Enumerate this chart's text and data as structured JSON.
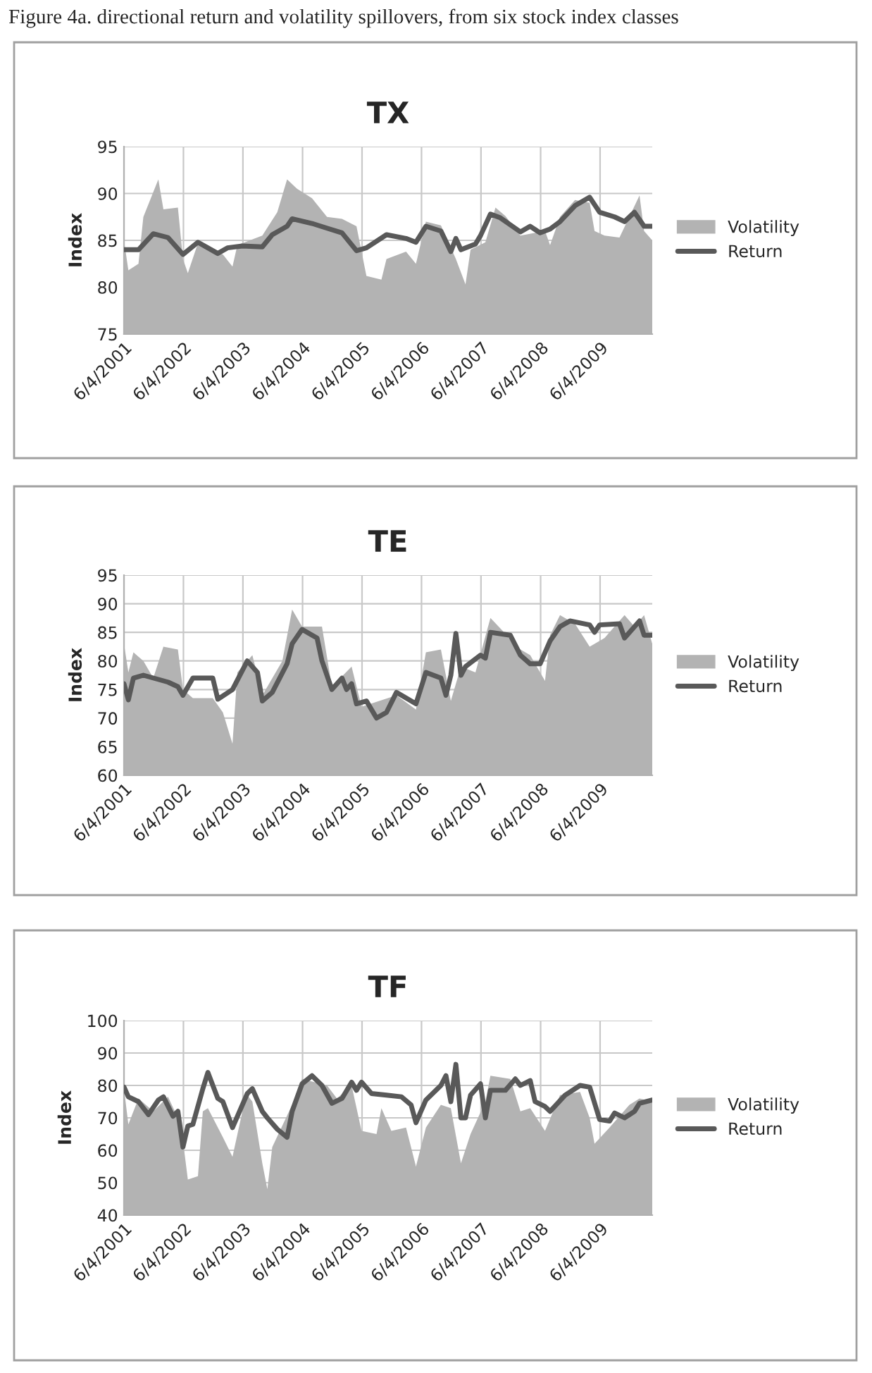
{
  "chart_data": [
    {
      "type": "area",
      "title": "TX",
      "ylabel": "Index",
      "annotations": [
        "Figure 4a. directional return and volatility spillovers, from six stock index classes"
      ],
      "xlim": [
        "2001-06-04",
        "2010-04-20"
      ],
      "xticks": [
        {
          "value": "2001-06-04",
          "label": "6/4/2001"
        },
        {
          "value": "2002-06-04",
          "label": "6/4/2002"
        },
        {
          "value": "2003-06-04",
          "label": "6/4/2003"
        },
        {
          "value": "2004-06-04",
          "label": "6/4/2004"
        },
        {
          "value": "2005-06-04",
          "label": "6/4/2005"
        },
        {
          "value": "2006-06-04",
          "label": "6/4/2006"
        },
        {
          "value": "2007-06-04",
          "label": "6/4/2007"
        },
        {
          "value": "2008-06-04",
          "label": "6/4/2008"
        },
        {
          "value": "2009-06-04",
          "label": "6/4/2009"
        }
      ],
      "ylim": [
        75,
        95
      ],
      "yticks": [
        75,
        80,
        85,
        90,
        95
      ],
      "grid": true,
      "legend": "right",
      "series": [
        {
          "name": "Volatility",
          "color": "#b3b3b3",
          "x": [
            "2001-06-04",
            "2001-07",
            "2001-09",
            "2001-10",
            "2002-01",
            "2002-02",
            "2002-05",
            "2002-06",
            "2002-07",
            "2002-09",
            "2003-02",
            "2003-04",
            "2003-05",
            "2003-10",
            "2004-01",
            "2004-03",
            "2004-05",
            "2004-08",
            "2004-11",
            "2005-02",
            "2005-05",
            "2005-07",
            "2005-10",
            "2005-11",
            "2006-03",
            "2006-05",
            "2006-07",
            "2006-10",
            "2007-01",
            "2007-03",
            "2007-04",
            "2007-07",
            "2007-09",
            "2007-11",
            "2008-02",
            "2008-07",
            "2008-08",
            "2008-10",
            "2009-01",
            "2009-04",
            "2009-05",
            "2009-07",
            "2009-10",
            "2010-02",
            "2010-03",
            "2010-04-20"
          ],
          "values": [
            85.0,
            81.8,
            82.5,
            87.5,
            91.5,
            88.3,
            88.5,
            83.0,
            81.5,
            84.7,
            83.5,
            82.2,
            84.5,
            85.5,
            88.0,
            91.5,
            90.5,
            89.5,
            87.5,
            87.3,
            86.5,
            81.2,
            80.8,
            83.0,
            83.8,
            82.5,
            87.0,
            86.6,
            83.0,
            80.3,
            84.0,
            84.8,
            88.5,
            87.6,
            85.5,
            86.0,
            84.5,
            87.5,
            89.3,
            89.0,
            86.0,
            85.5,
            85.3,
            89.8,
            86.0,
            85.0
          ]
        },
        {
          "name": "Return",
          "type": "line",
          "color": "#595959",
          "x": [
            "2001-06-04",
            "2001-09",
            "2001-12",
            "2002-03",
            "2002-06",
            "2002-09",
            "2003-01",
            "2003-03",
            "2003-06",
            "2003-10",
            "2003-12",
            "2004-03",
            "2004-04",
            "2004-08",
            "2004-11",
            "2005-02",
            "2005-05",
            "2005-07",
            "2005-11",
            "2006-03",
            "2006-05",
            "2006-07",
            "2006-10",
            "2006-12",
            "2007-01",
            "2007-02",
            "2007-05",
            "2007-06",
            "2007-08",
            "2007-10",
            "2008-02",
            "2008-04",
            "2008-06",
            "2008-08",
            "2008-10",
            "2009-01",
            "2009-04",
            "2009-06",
            "2009-09",
            "2009-11",
            "2010-01",
            "2010-03",
            "2010-04-20"
          ],
          "values": [
            84.0,
            84.0,
            85.7,
            85.3,
            83.5,
            84.8,
            83.6,
            84.2,
            84.4,
            84.3,
            85.6,
            86.5,
            87.3,
            86.8,
            86.3,
            85.8,
            83.9,
            84.2,
            85.6,
            85.2,
            84.8,
            86.5,
            86.0,
            83.8,
            85.2,
            84.0,
            84.6,
            85.5,
            87.8,
            87.4,
            85.9,
            86.5,
            85.8,
            86.2,
            87.0,
            88.7,
            89.6,
            88.0,
            87.5,
            87.0,
            88.0,
            86.5,
            86.5
          ]
        }
      ]
    },
    {
      "type": "area",
      "title": "TE",
      "ylabel": "Index",
      "xlim": [
        "2001-06-04",
        "2010-04-20"
      ],
      "xticks": [
        {
          "value": "2001-06-04",
          "label": "6/4/2001"
        },
        {
          "value": "2002-06-04",
          "label": "6/4/2002"
        },
        {
          "value": "2003-06-04",
          "label": "6/4/2003"
        },
        {
          "value": "2004-06-04",
          "label": "6/4/2004"
        },
        {
          "value": "2005-06-04",
          "label": "6/4/2005"
        },
        {
          "value": "2006-06-04",
          "label": "6/4/2006"
        },
        {
          "value": "2007-06-04",
          "label": "6/4/2007"
        },
        {
          "value": "2008-06-04",
          "label": "6/4/2008"
        },
        {
          "value": "2009-06-04",
          "label": "6/4/2009"
        }
      ],
      "ylim": [
        60,
        95
      ],
      "yticks": [
        60,
        65,
        70,
        75,
        80,
        85,
        90,
        95
      ],
      "grid": true,
      "legend": "right",
      "series": [
        {
          "name": "Volatility",
          "color": "#b3b3b3",
          "x": [
            "2001-06-04",
            "2001-07",
            "2001-08",
            "2001-10",
            "2001-12",
            "2002-02",
            "2002-05",
            "2002-06",
            "2002-08",
            "2002-12",
            "2003-02",
            "2003-04",
            "2003-05",
            "2003-08",
            "2003-10",
            "2004-02",
            "2004-04",
            "2004-06",
            "2004-10",
            "2004-12",
            "2005-04",
            "2005-06",
            "2006-01",
            "2006-05",
            "2006-07",
            "2006-10",
            "2006-12",
            "2007-02",
            "2007-05",
            "2007-08",
            "2008-02",
            "2008-04",
            "2008-07",
            "2008-08",
            "2008-10",
            "2009-01",
            "2009-04",
            "2009-07",
            "2009-11",
            "2010-01",
            "2010-03",
            "2010-04-20"
          ],
          "values": [
            83.0,
            78.0,
            81.5,
            80.0,
            77.0,
            82.5,
            82.0,
            75.0,
            73.5,
            73.5,
            71.0,
            65.5,
            78.0,
            81.0,
            74.0,
            80.0,
            89.0,
            86.0,
            86.0,
            75.5,
            79.0,
            72.0,
            74.0,
            71.5,
            81.5,
            82.0,
            73.0,
            79.0,
            78.0,
            87.5,
            82.0,
            81.0,
            76.5,
            84.5,
            88.0,
            86.5,
            82.5,
            84.0,
            88.0,
            86.0,
            88.0,
            83.0
          ]
        },
        {
          "name": "Return",
          "type": "line",
          "color": "#595959",
          "x": [
            "2001-06-04",
            "2001-07",
            "2001-08",
            "2001-10",
            "2002-03",
            "2002-05",
            "2002-06",
            "2002-08",
            "2002-12",
            "2003-01",
            "2003-04",
            "2003-07",
            "2003-09",
            "2003-10",
            "2003-12",
            "2004-03",
            "2004-04",
            "2004-06",
            "2004-09",
            "2004-10",
            "2004-12",
            "2005-02",
            "2005-03",
            "2005-04",
            "2005-05",
            "2005-07",
            "2005-09",
            "2005-11",
            "2006-01",
            "2006-05",
            "2006-07",
            "2006-10",
            "2006-11",
            "2006-12",
            "2007-01",
            "2007-02",
            "2007-03",
            "2007-06",
            "2007-07",
            "2007-08",
            "2007-12",
            "2008-02",
            "2008-04",
            "2008-06",
            "2008-08",
            "2008-10",
            "2008-12",
            "2009-04",
            "2009-05",
            "2009-06",
            "2009-10",
            "2009-11",
            "2010-02",
            "2010-03",
            "2010-04-20"
          ],
          "values": [
            76.0,
            73.2,
            77.0,
            77.5,
            76.3,
            75.5,
            74.0,
            77.0,
            77.0,
            73.3,
            75.0,
            80.0,
            78.0,
            73.0,
            74.5,
            79.5,
            83.0,
            85.5,
            84.0,
            80.0,
            75.0,
            77.0,
            75.0,
            76.0,
            72.5,
            73.0,
            70.0,
            71.0,
            74.5,
            72.5,
            78.0,
            77.0,
            74.0,
            77.5,
            84.8,
            77.5,
            79.0,
            81.0,
            80.5,
            85.0,
            84.5,
            81.0,
            79.5,
            79.5,
            83.5,
            86.0,
            87.0,
            86.3,
            85.0,
            86.3,
            86.5,
            84.0,
            87.0,
            84.5,
            84.5
          ]
        }
      ]
    },
    {
      "type": "area",
      "title": "TF",
      "ylabel": "Index",
      "xlim": [
        "2001-06-04",
        "2010-04-20"
      ],
      "xticks": [
        {
          "value": "2001-06-04",
          "label": "6/4/2001"
        },
        {
          "value": "2002-06-04",
          "label": "6/4/2002"
        },
        {
          "value": "2003-06-04",
          "label": "6/4/2003"
        },
        {
          "value": "2004-06-04",
          "label": "6/4/2004"
        },
        {
          "value": "2005-06-04",
          "label": "6/4/2005"
        },
        {
          "value": "2006-06-04",
          "label": "6/4/2006"
        },
        {
          "value": "2007-06-04",
          "label": "6/4/2007"
        },
        {
          "value": "2008-06-04",
          "label": "6/4/2008"
        },
        {
          "value": "2009-06-04",
          "label": "6/4/2009"
        }
      ],
      "ylim": [
        40,
        100
      ],
      "yticks": [
        40,
        50,
        60,
        70,
        80,
        90,
        100
      ],
      "grid": true,
      "legend": "right",
      "series": [
        {
          "name": "Volatility",
          "color": "#b3b3b3",
          "x": [
            "2001-06-04",
            "2001-07",
            "2001-09",
            "2001-12",
            "2002-03",
            "2002-05",
            "2002-06",
            "2002-07",
            "2002-09",
            "2002-10",
            "2002-11",
            "2003-02",
            "2003-04",
            "2003-06",
            "2003-07",
            "2003-08",
            "2003-10",
            "2003-11",
            "2003-12",
            "2004-04",
            "2004-06",
            "2004-11",
            "2005-01",
            "2005-04",
            "2005-06",
            "2005-09",
            "2005-10",
            "2005-12",
            "2006-03",
            "2006-05",
            "2006-07",
            "2006-10",
            "2006-12",
            "2007-02",
            "2007-04",
            "2007-07",
            "2007-08",
            "2007-12",
            "2008-02",
            "2008-04",
            "2008-07",
            "2008-10",
            "2009-02",
            "2009-04",
            "2009-05",
            "2009-08",
            "2009-12",
            "2010-02",
            "2010-04-20"
          ],
          "values": [
            79.0,
            68.0,
            76.0,
            72.0,
            76.5,
            70.0,
            63.0,
            51.0,
            52.0,
            72.0,
            73.0,
            64.0,
            58.0,
            72.0,
            77.0,
            75.0,
            56.0,
            48.0,
            61.0,
            74.0,
            82.0,
            80.0,
            76.0,
            80.0,
            66.0,
            65.0,
            73.0,
            66.0,
            67.0,
            55.0,
            67.0,
            74.0,
            73.0,
            56.0,
            65.0,
            75.0,
            83.0,
            82.0,
            72.0,
            73.0,
            66.0,
            77.0,
            78.0,
            70.0,
            62.0,
            67.0,
            74.0,
            76.0,
            75.0
          ]
        },
        {
          "name": "Return",
          "type": "line",
          "color": "#595959",
          "x": [
            "2001-06-04",
            "2001-07",
            "2001-09",
            "2001-11",
            "2002-01",
            "2002-02",
            "2002-04",
            "2002-05",
            "2002-06",
            "2002-07",
            "2002-08",
            "2002-10",
            "2002-11",
            "2003-01",
            "2003-02",
            "2003-04",
            "2003-07",
            "2003-08",
            "2003-10",
            "2003-11",
            "2004-01",
            "2004-03",
            "2004-04",
            "2004-06",
            "2004-08",
            "2004-10",
            "2004-12",
            "2005-02",
            "2005-04",
            "2005-05",
            "2005-06",
            "2005-08",
            "2005-11",
            "2006-02",
            "2006-04",
            "2006-05",
            "2006-07",
            "2006-10",
            "2006-11",
            "2006-12",
            "2007-01",
            "2007-02",
            "2007-03",
            "2007-04",
            "2007-06",
            "2007-07",
            "2007-08",
            "2007-11",
            "2008-01",
            "2008-02",
            "2008-04",
            "2008-05",
            "2008-07",
            "2008-08",
            "2008-11",
            "2009-02",
            "2009-04",
            "2009-06",
            "2009-08",
            "2009-09",
            "2009-11",
            "2010-01",
            "2010-02",
            "2010-04-20"
          ],
          "values": [
            79.5,
            76.5,
            75.0,
            71.0,
            75.5,
            76.5,
            70.5,
            72.0,
            61.0,
            67.5,
            68.0,
            79.0,
            84.0,
            76.0,
            75.0,
            67.0,
            77.5,
            79.0,
            72.0,
            70.0,
            66.5,
            64.0,
            72.0,
            80.5,
            83.0,
            80.0,
            74.5,
            76.0,
            81.0,
            78.5,
            81.0,
            77.5,
            77.0,
            76.5,
            74.0,
            68.5,
            75.5,
            80.0,
            83.0,
            75.0,
            86.5,
            70.0,
            70.0,
            77.0,
            80.5,
            70.0,
            78.5,
            78.5,
            82.0,
            80.0,
            81.5,
            75.0,
            73.5,
            72.0,
            77.0,
            80.0,
            79.5,
            69.5,
            69.0,
            71.5,
            70.0,
            72.0,
            74.5,
            75.5
          ]
        }
      ]
    }
  ]
}
